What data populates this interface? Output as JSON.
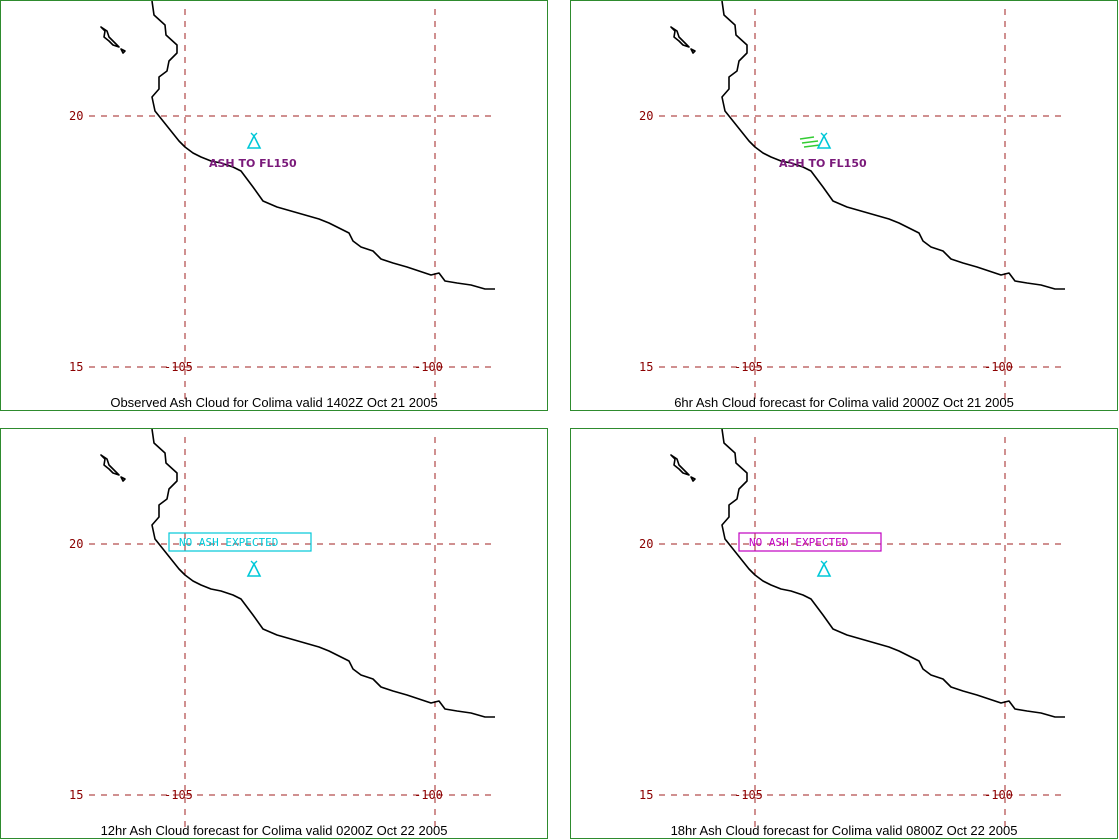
{
  "colors": {
    "frame": "#2e8b2e",
    "grid": "#a02020",
    "grid_label": "#8b0000",
    "volcano": "#00c8d8",
    "ash_cloud": "#33cc33",
    "ash_text": "#7a1a7a",
    "box_cyan": "#00c8d8",
    "box_magenta": "#c000c0"
  },
  "labels": {
    "lat_north": "20",
    "lat_south": "15",
    "lon_west": "-105",
    "lon_east": "-100"
  },
  "panels": [
    {
      "caption": "Observed Ash Cloud for Colima valid 1402Z Oct 21 2005",
      "annotation": "ASH TO FL150",
      "icon": "volcano-icon"
    },
    {
      "caption": "6hr Ash Cloud forecast for Colima valid 2000Z Oct 21 2005",
      "annotation": "ASH TO FL150",
      "icon": "volcano-icon"
    },
    {
      "caption": "12hr Ash Cloud forecast for Colima valid 0200Z Oct 22 2005",
      "annotation": "NO ASH EXPECTED",
      "icon": "volcano-icon"
    },
    {
      "caption": "18hr Ash Cloud forecast for Colima valid 0800Z Oct 22 2005",
      "annotation": "NO ASH EXPECTED",
      "icon": "volcano-icon"
    }
  ]
}
